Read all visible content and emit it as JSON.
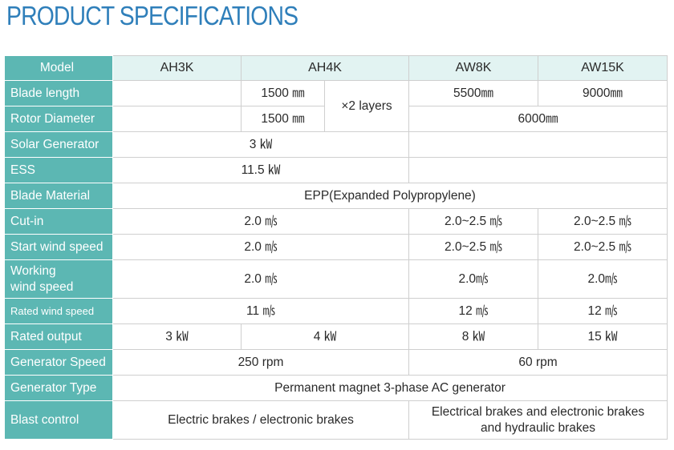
{
  "page": {
    "title": "PRODUCT SPECIFICATIONS"
  },
  "header": {
    "label": "Model",
    "models": [
      "AH3K",
      "AH4K",
      "AW8K",
      "AW15K"
    ]
  },
  "rows": {
    "blade_length": {
      "label": "Blade length",
      "ah3k": "",
      "ah4k": "1500 ㎜",
      "layers": "×2 layers",
      "aw8k": "5500㎜",
      "aw15k": "9000㎜"
    },
    "rotor_diameter": {
      "label": "Rotor Diameter",
      "ah3k": "",
      "ah4k": "1500 ㎜",
      "aw": "6000㎜"
    },
    "solar_generator": {
      "label": "Solar Generator",
      "ah": "3 ㎾",
      "aw": ""
    },
    "ess": {
      "label": "ESS",
      "ah": "11.5 ㎾",
      "aw": ""
    },
    "blade_material": {
      "label": "Blade Material",
      "all": "EPP(Expanded Polypropylene)"
    },
    "cut_in": {
      "label": "Cut-in",
      "ah": "2.0 ㎧",
      "aw8k": "2.0~2.5 ㎧",
      "aw15k": "2.0~2.5 ㎧"
    },
    "start_wind_speed": {
      "label": "Start wind speed",
      "ah": "2.0 ㎧",
      "aw8k": "2.0~2.5 ㎧",
      "aw15k": "2.0~2.5 ㎧"
    },
    "working_wind_speed": {
      "label": "Working\nwind speed",
      "ah": "2.0 ㎧",
      "aw8k": "2.0㎧",
      "aw15k": "2.0㎧"
    },
    "rated_wind_speed": {
      "label": "Rated wind speed",
      "ah": "11 ㎧",
      "aw8k": "12 ㎧",
      "aw15k": "12 ㎧"
    },
    "rated_output": {
      "label": "Rated output",
      "ah3k": "3 ㎾",
      "ah4k": "4 ㎾",
      "aw8k": "8 ㎾",
      "aw15k": "15 ㎾"
    },
    "generator_speed": {
      "label": "Generator Speed",
      "ah": "250 rpm",
      "aw": "60 rpm"
    },
    "generator_type": {
      "label": "Generator Type",
      "all": "Permanent magnet 3-phase AC generator"
    },
    "blast_control": {
      "label": "Blast control",
      "ah": "Electric brakes / electronic brakes",
      "aw": "Electrical brakes and electronic brakes\nand hydraulic brakes"
    }
  }
}
